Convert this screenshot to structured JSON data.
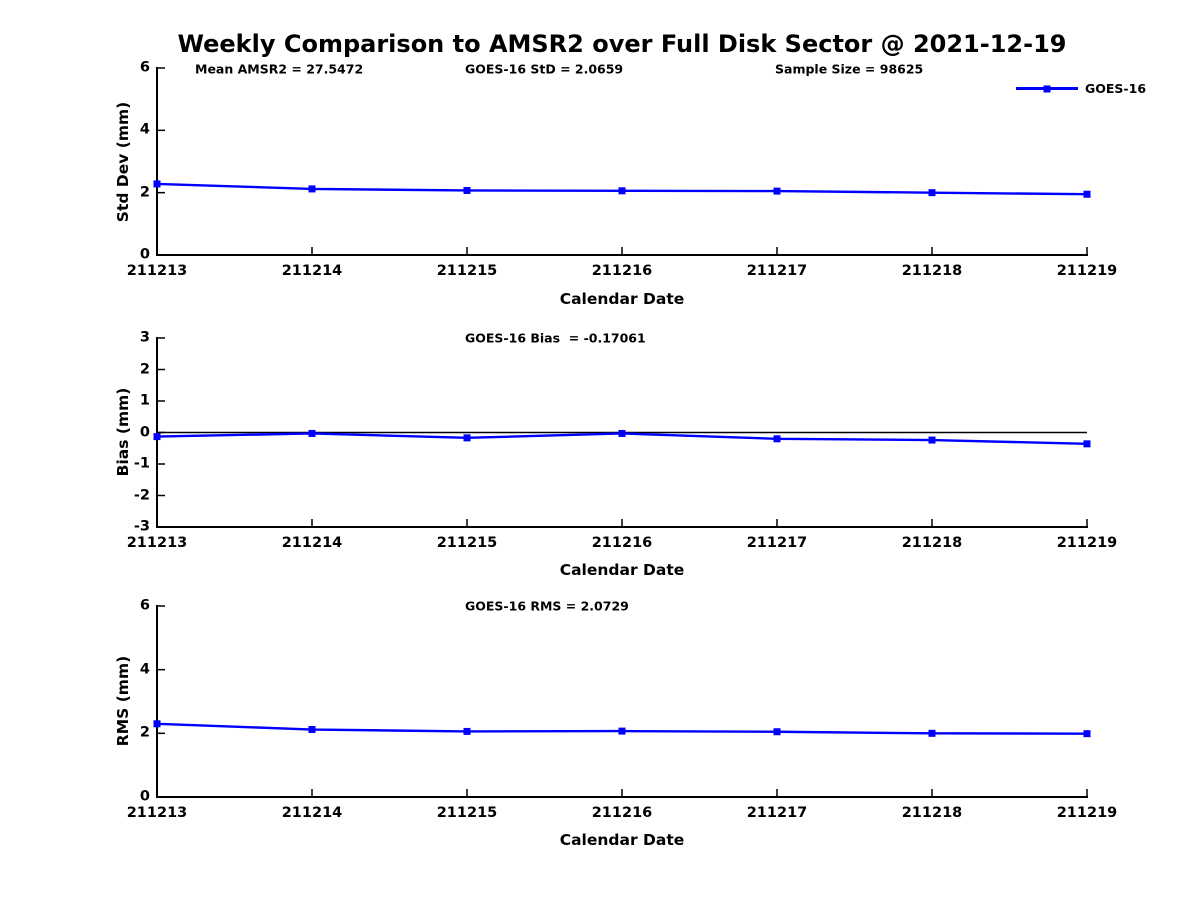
{
  "title": "Weekly Comparison to AMSR2 over Full Disk Sector @ 2021-12-19",
  "accent_color": "#0000ff",
  "legend": {
    "label": "GOES-16",
    "position": "top-right",
    "color": "#0000ff"
  },
  "chart_data": [
    {
      "type": "line",
      "ylabel": "Std Dev (mm)",
      "xlabel": "Calendar Date",
      "ylim": [
        0,
        6
      ],
      "yticks": [
        0,
        2,
        4,
        6
      ],
      "grid": false,
      "legend_position": "top-right",
      "categories": [
        "211213",
        "211214",
        "211215",
        "211216",
        "211217",
        "211218",
        "211219"
      ],
      "series": [
        {
          "name": "GOES-16",
          "color": "#0000ff",
          "marker": "square",
          "values": [
            2.28,
            2.12,
            2.07,
            2.06,
            2.05,
            2.0,
            1.95
          ]
        }
      ],
      "annotations": [
        "Mean AMSR2 = 27.5472",
        "GOES-16 StD = 2.0659",
        "Sample Size = 98625"
      ]
    },
    {
      "type": "line",
      "ylabel": "Bias (mm)",
      "xlabel": "Calendar Date",
      "ylim": [
        -3,
        3
      ],
      "yticks": [
        3,
        2,
        1,
        0,
        -1,
        -2,
        -3
      ],
      "grid": false,
      "zero_line": true,
      "categories": [
        "211213",
        "211214",
        "211215",
        "211216",
        "211217",
        "211218",
        "211219"
      ],
      "series": [
        {
          "name": "GOES-16",
          "color": "#0000ff",
          "marker": "square",
          "values": [
            -0.13,
            -0.03,
            -0.17,
            -0.03,
            -0.2,
            -0.24,
            -0.36
          ]
        }
      ],
      "annotations": [
        "GOES-16 Bias  = -0.17061"
      ]
    },
    {
      "type": "line",
      "ylabel": "RMS (mm)",
      "xlabel": "Calendar Date",
      "ylim": [
        0,
        6
      ],
      "yticks": [
        0,
        2,
        4,
        6
      ],
      "grid": false,
      "categories": [
        "211213",
        "211214",
        "211215",
        "211216",
        "211217",
        "211218",
        "211219"
      ],
      "series": [
        {
          "name": "GOES-16",
          "color": "#0000ff",
          "marker": "square",
          "values": [
            2.3,
            2.12,
            2.06,
            2.07,
            2.05,
            2.0,
            1.99
          ]
        }
      ],
      "annotations": [
        "GOES-16 RMS = 2.0729"
      ]
    }
  ]
}
